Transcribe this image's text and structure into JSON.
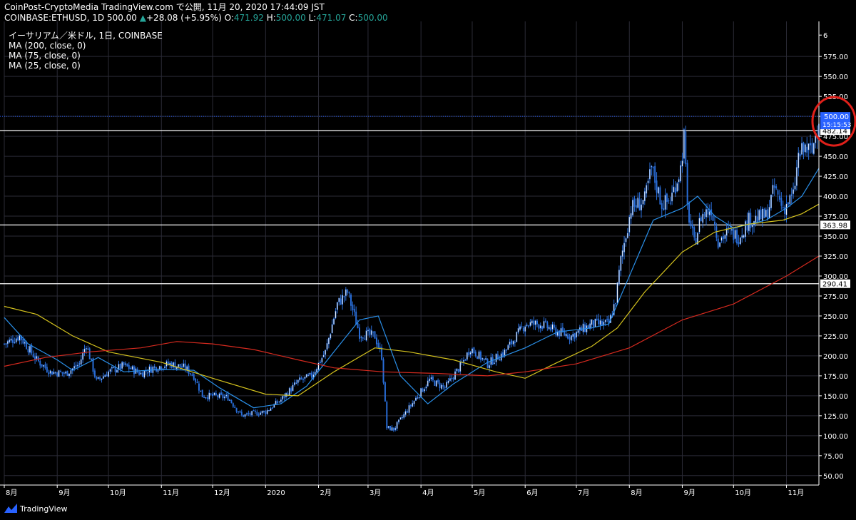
{
  "header": {
    "line1": "CoinPost-CryptoMedia TradingView.com で公開, 11月 20, 2020 17:44:09 JST",
    "symbol": "COINBASE:ETHUSD, 1D",
    "last": "500.00",
    "change_icon": "triangle-up-icon",
    "change": "+28.08 (+5.95%)",
    "o_label": "O:",
    "o": "471.92",
    "h_label": "H:",
    "h": "500.00",
    "l_label": "L:",
    "l": "471.07",
    "c_label": "C:",
    "c": "500.00"
  },
  "legend": {
    "title": "イーサリアム／米ドル, 1日, COINBASE",
    "ma200": "MA (200, close, 0)",
    "ma75": "MA (75, close, 0)",
    "ma25": "MA (25, close, 0)"
  },
  "footer": {
    "brand": "TradingView",
    "logo_icon": "tradingview-logo-icon"
  },
  "chart_data": {
    "type": "candlestick",
    "x_axis": "date",
    "x_start": "2019-08-01",
    "x_end": "2020-11-20",
    "ylim": [
      40,
      610
    ],
    "grid": true,
    "y_ticks": [
      "6",
      "575.00",
      "550.00",
      "525.00",
      "500.00",
      "475.00",
      "450.00",
      "425.00",
      "400.00",
      "375.00",
      "350.00",
      "325.00",
      "300.00",
      "275.00",
      "250.00",
      "225.00",
      "200.00",
      "175.00",
      "150.00",
      "125.00",
      "100.00",
      "75.00",
      "50.00"
    ],
    "x_ticks": [
      {
        "date": "2019-08-01",
        "label": "8月"
      },
      {
        "date": "2019-09-01",
        "label": "9月"
      },
      {
        "date": "2019-10-01",
        "label": "10月"
      },
      {
        "date": "2019-11-01",
        "label": "11月"
      },
      {
        "date": "2019-12-01",
        "label": "12月"
      },
      {
        "date": "2020-01-01",
        "label": "2020"
      },
      {
        "date": "2020-02-01",
        "label": "2月"
      },
      {
        "date": "2020-03-01",
        "label": "3月"
      },
      {
        "date": "2020-04-01",
        "label": "4月"
      },
      {
        "date": "2020-05-01",
        "label": "5月"
      },
      {
        "date": "2020-06-01",
        "label": "6月"
      },
      {
        "date": "2020-07-01",
        "label": "7月"
      },
      {
        "date": "2020-08-01",
        "label": "8月"
      },
      {
        "date": "2020-09-01",
        "label": "9月"
      },
      {
        "date": "2020-10-01",
        "label": "10月"
      },
      {
        "date": "2020-11-01",
        "label": "11月"
      }
    ],
    "horizontal_lines": [
      {
        "value": 482.14,
        "label": "482.14",
        "color": "#ffffff"
      },
      {
        "value": 363.98,
        "label": "363.98",
        "color": "#ffffff"
      },
      {
        "value": 290.41,
        "label": "290.41",
        "color": "#ffffff"
      }
    ],
    "last_price": {
      "value": 500.0,
      "label": "500.00",
      "countdown": "15:15:53",
      "color": "#2962ff"
    },
    "candle_colors": {
      "up": "#ffffff",
      "down": "#2a6fdb"
    },
    "highlight": {
      "shape": "circle",
      "color": "#e0201a",
      "target": "last-price"
    },
    "close_path": [
      [
        "2019-08-01",
        215
      ],
      [
        "2019-08-10",
        225
      ],
      [
        "2019-08-20",
        195
      ],
      [
        "2019-08-28",
        180
      ],
      [
        "2019-09-06",
        178
      ],
      [
        "2019-09-14",
        190
      ],
      [
        "2019-09-18",
        215
      ],
      [
        "2019-09-24",
        168
      ],
      [
        "2019-10-01",
        180
      ],
      [
        "2019-10-10",
        188
      ],
      [
        "2019-10-20",
        178
      ],
      [
        "2019-10-27",
        185
      ],
      [
        "2019-11-06",
        190
      ],
      [
        "2019-11-15",
        185
      ],
      [
        "2019-11-20",
        175
      ],
      [
        "2019-11-25",
        150
      ],
      [
        "2019-12-01",
        150
      ],
      [
        "2019-12-10",
        148
      ],
      [
        "2019-12-18",
        125
      ],
      [
        "2019-12-25",
        128
      ],
      [
        "2020-01-01",
        130
      ],
      [
        "2020-01-10",
        145
      ],
      [
        "2020-01-20",
        168
      ],
      [
        "2020-01-28",
        175
      ],
      [
        "2020-02-05",
        205
      ],
      [
        "2020-02-12",
        265
      ],
      [
        "2020-02-18",
        280
      ],
      [
        "2020-02-25",
        228
      ],
      [
        "2020-03-05",
        225
      ],
      [
        "2020-03-09",
        200
      ],
      [
        "2020-03-12",
        110
      ],
      [
        "2020-03-16",
        108
      ],
      [
        "2020-03-25",
        135
      ],
      [
        "2020-04-06",
        170
      ],
      [
        "2020-04-15",
        160
      ],
      [
        "2020-04-25",
        190
      ],
      [
        "2020-04-30",
        210
      ],
      [
        "2020-05-10",
        190
      ],
      [
        "2020-05-20",
        205
      ],
      [
        "2020-06-01",
        240
      ],
      [
        "2020-06-10",
        240
      ],
      [
        "2020-06-20",
        230
      ],
      [
        "2020-06-28",
        225
      ],
      [
        "2020-07-10",
        240
      ],
      [
        "2020-07-20",
        240
      ],
      [
        "2020-07-24",
        270
      ],
      [
        "2020-07-27",
        320
      ],
      [
        "2020-08-02",
        385
      ],
      [
        "2020-08-10",
        395
      ],
      [
        "2020-08-14",
        435
      ],
      [
        "2020-08-20",
        390
      ],
      [
        "2020-08-25",
        395
      ],
      [
        "2020-08-31",
        435
      ],
      [
        "2020-09-02",
        475
      ],
      [
        "2020-09-04",
        385
      ],
      [
        "2020-09-08",
        340
      ],
      [
        "2020-09-12",
        375
      ],
      [
        "2020-09-18",
        385
      ],
      [
        "2020-09-22",
        345
      ],
      [
        "2020-09-28",
        355
      ],
      [
        "2020-10-04",
        350
      ],
      [
        "2020-10-10",
        370
      ],
      [
        "2020-10-20",
        375
      ],
      [
        "2020-10-25",
        410
      ],
      [
        "2020-10-30",
        385
      ],
      [
        "2020-11-05",
        400
      ],
      [
        "2020-11-08",
        450
      ],
      [
        "2020-11-12",
        460
      ],
      [
        "2020-11-16",
        455
      ],
      [
        "2020-11-20",
        500
      ]
    ],
    "series": [
      {
        "name": "MA (25, close, 0)",
        "color": "#2a8fe8",
        "points": [
          [
            "2019-08-01",
            248
          ],
          [
            "2019-08-15",
            215
          ],
          [
            "2019-09-01",
            195
          ],
          [
            "2019-09-10",
            182
          ],
          [
            "2019-09-25",
            198
          ],
          [
            "2019-10-10",
            180
          ],
          [
            "2019-11-01",
            183
          ],
          [
            "2019-11-20",
            182
          ],
          [
            "2019-12-05",
            160
          ],
          [
            "2019-12-25",
            135
          ],
          [
            "2020-01-10",
            140
          ],
          [
            "2020-01-25",
            162
          ],
          [
            "2020-02-10",
            205
          ],
          [
            "2020-02-25",
            245
          ],
          [
            "2020-03-07",
            250
          ],
          [
            "2020-03-20",
            175
          ],
          [
            "2020-04-05",
            140
          ],
          [
            "2020-04-20",
            165
          ],
          [
            "2020-05-10",
            192
          ],
          [
            "2020-06-01",
            210
          ],
          [
            "2020-06-20",
            230
          ],
          [
            "2020-07-10",
            235
          ],
          [
            "2020-07-20",
            240
          ],
          [
            "2020-08-01",
            300
          ],
          [
            "2020-08-15",
            370
          ],
          [
            "2020-09-01",
            385
          ],
          [
            "2020-09-10",
            400
          ],
          [
            "2020-09-20",
            375
          ],
          [
            "2020-10-01",
            360
          ],
          [
            "2020-10-20",
            370
          ],
          [
            "2020-11-01",
            385
          ],
          [
            "2020-11-10",
            400
          ],
          [
            "2020-11-20",
            435
          ]
        ]
      },
      {
        "name": "MA (75, close, 0)",
        "color": "#d4c21e",
        "points": [
          [
            "2019-08-01",
            262
          ],
          [
            "2019-08-20",
            252
          ],
          [
            "2019-09-10",
            225
          ],
          [
            "2019-10-01",
            205
          ],
          [
            "2019-11-01",
            192
          ],
          [
            "2019-12-01",
            172
          ],
          [
            "2020-01-01",
            152
          ],
          [
            "2020-01-20",
            150
          ],
          [
            "2020-02-10",
            180
          ],
          [
            "2020-03-05",
            210
          ],
          [
            "2020-03-25",
            205
          ],
          [
            "2020-04-20",
            195
          ],
          [
            "2020-05-15",
            180
          ],
          [
            "2020-06-01",
            172
          ],
          [
            "2020-06-20",
            192
          ],
          [
            "2020-07-10",
            212
          ],
          [
            "2020-07-25",
            235
          ],
          [
            "2020-08-10",
            280
          ],
          [
            "2020-09-01",
            330
          ],
          [
            "2020-09-20",
            355
          ],
          [
            "2020-10-10",
            365
          ],
          [
            "2020-10-30",
            370
          ],
          [
            "2020-11-10",
            378
          ],
          [
            "2020-11-20",
            390
          ]
        ]
      },
      {
        "name": "MA (200, close, 0)",
        "color": "#d62a1f",
        "points": [
          [
            "2019-08-01",
            187
          ],
          [
            "2019-08-25",
            198
          ],
          [
            "2019-09-20",
            205
          ],
          [
            "2019-10-20",
            210
          ],
          [
            "2019-11-10",
            218
          ],
          [
            "2019-12-01",
            215
          ],
          [
            "2019-12-25",
            208
          ],
          [
            "2020-01-20",
            195
          ],
          [
            "2020-02-10",
            185
          ],
          [
            "2020-03-10",
            180
          ],
          [
            "2020-04-10",
            178
          ],
          [
            "2020-05-10",
            175
          ],
          [
            "2020-06-01",
            180
          ],
          [
            "2020-07-01",
            190
          ],
          [
            "2020-08-01",
            210
          ],
          [
            "2020-09-01",
            245
          ],
          [
            "2020-10-01",
            265
          ],
          [
            "2020-11-01",
            300
          ],
          [
            "2020-11-20",
            325
          ]
        ]
      }
    ]
  }
}
